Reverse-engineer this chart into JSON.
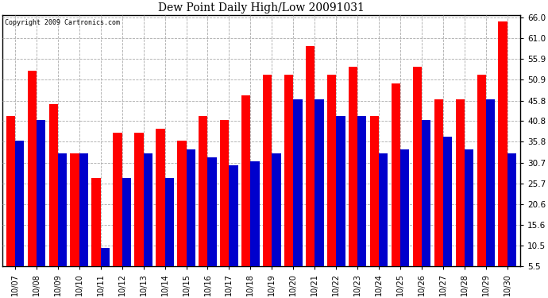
{
  "title": "Dew Point Daily High/Low 20091031",
  "copyright": "Copyright 2009 Cartronics.com",
  "categories": [
    "10/07",
    "10/08",
    "10/09",
    "10/10",
    "10/11",
    "10/12",
    "10/13",
    "10/14",
    "10/15",
    "10/16",
    "10/17",
    "10/18",
    "10/19",
    "10/20",
    "10/21",
    "10/22",
    "10/23",
    "10/24",
    "10/25",
    "10/26",
    "10/27",
    "10/28",
    "10/29",
    "10/30"
  ],
  "high_values": [
    42,
    53,
    45,
    33,
    27,
    38,
    38,
    39,
    36,
    42,
    41,
    47,
    52,
    52,
    59,
    52,
    54,
    42,
    50,
    54,
    46,
    46,
    52,
    65
  ],
  "low_values": [
    36,
    41,
    33,
    33,
    10,
    27,
    33,
    27,
    34,
    32,
    30,
    31,
    33,
    46,
    46,
    42,
    42,
    33,
    34,
    41,
    37,
    34,
    46,
    33
  ],
  "high_color": "#ff0000",
  "low_color": "#0000cc",
  "bg_color": "#ffffff",
  "grid_color": "#aaaaaa",
  "ytick_labels": [
    "5.5",
    "10.5",
    "15.6",
    "20.6",
    "25.7",
    "30.7",
    "35.8",
    "40.8",
    "45.8",
    "50.9",
    "55.9",
    "61.0",
    "66.0"
  ],
  "ytick_vals": [
    5.5,
    10.5,
    15.6,
    20.6,
    25.7,
    30.7,
    35.8,
    40.8,
    45.8,
    50.9,
    55.9,
    61.0,
    66.0
  ],
  "ymin": 5.5,
  "ymax": 66.5,
  "bar_width": 0.42
}
